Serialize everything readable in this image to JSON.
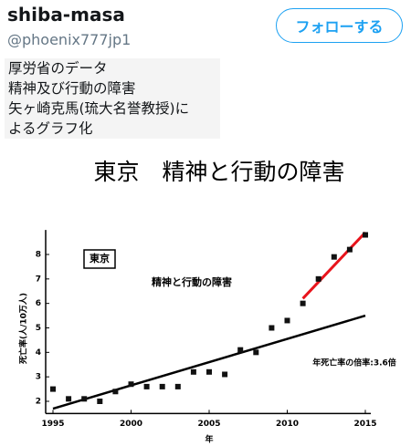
{
  "tweet": {
    "name": "shiba-masa",
    "handle": "@phoenix777jp1",
    "follow_button": "フォローする",
    "text_lines": [
      "厚労省のデータ",
      "精神及び行動の障害",
      "矢ヶ崎克馬(琉大名誉教授)に",
      "よるグラフ化"
    ]
  },
  "chart_data": {
    "type": "scatter",
    "title": "東京　精神と行動の障害",
    "box_label": "東京",
    "inner_label": "精神と行動の障害",
    "annotation": "年死亡率の倍率:3.6倍",
    "ylabel": "死亡率(人/10万人)",
    "xlabel": "年",
    "x": [
      1995,
      1996,
      1997,
      1998,
      1999,
      2000,
      2001,
      2002,
      2003,
      2004,
      2005,
      2006,
      2007,
      2008,
      2009,
      2010,
      2011,
      2012,
      2013,
      2014,
      2015
    ],
    "series": [
      {
        "name": "死亡率",
        "color": "#111111",
        "values": [
          2.5,
          2.1,
          2.1,
          2.0,
          2.4,
          2.7,
          2.6,
          2.6,
          2.6,
          3.2,
          3.2,
          3.1,
          4.1,
          4.0,
          5.0,
          5.3,
          6.0,
          7.0,
          7.9,
          8.2,
          8.8
        ]
      }
    ],
    "trend_lines": [
      {
        "color": "#000000",
        "x": [
          1995,
          2015
        ],
        "values": [
          1.7,
          5.5
        ]
      },
      {
        "color": "#e8141c",
        "x": [
          2011,
          2015
        ],
        "values": [
          6.2,
          8.9
        ]
      }
    ],
    "xlim": [
      1995,
      2015
    ],
    "ylim": [
      1.5,
      9
    ],
    "xticks": [
      1995,
      2000,
      2005,
      2010,
      2015
    ],
    "yticks": [
      2,
      3,
      4,
      5,
      6,
      7,
      8
    ]
  }
}
